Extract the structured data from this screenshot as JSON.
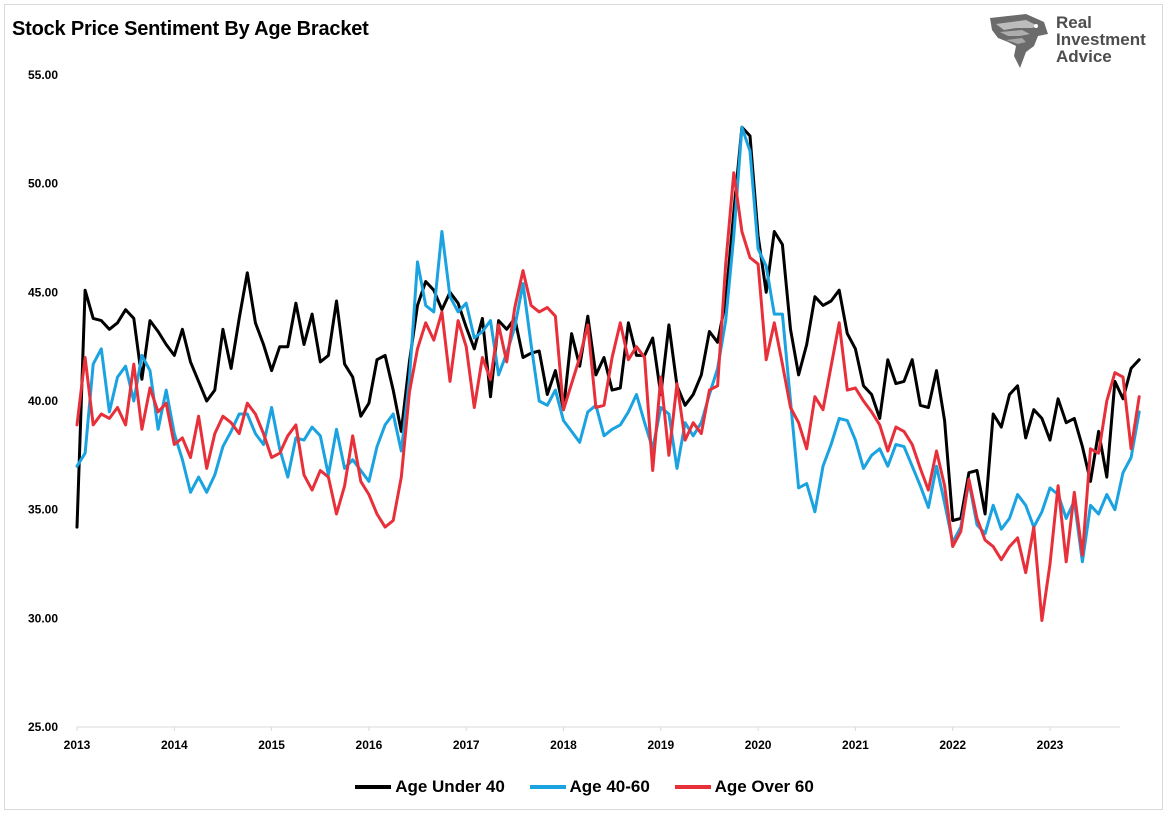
{
  "header": {
    "title": "Stock Price Sentiment By Age Bracket",
    "logo_lines": [
      "Real",
      "Investment",
      "Advice"
    ]
  },
  "colors": {
    "under40": "#000000",
    "age40_60": "#1aa3e0",
    "over60": "#e8303a",
    "axis": "#d9d9d9"
  },
  "chart_data": {
    "type": "line",
    "title": "Stock Price Sentiment By Age Bracket",
    "xlabel": "",
    "ylabel": "",
    "ylim": [
      25,
      55
    ],
    "yticks": [
      "25.00",
      "30.00",
      "35.00",
      "40.00",
      "45.00",
      "50.00",
      "55.00"
    ],
    "xticks": [
      "2013",
      "2014",
      "2015",
      "2016",
      "2017",
      "2018",
      "2019",
      "2020",
      "2021",
      "2022",
      "2023"
    ],
    "x_start": 2013.0,
    "x_step_months": 1,
    "grid": false,
    "legend_position": "bottom",
    "series": [
      {
        "name": "Age Under 40",
        "color": "#000000",
        "values": [
          34.2,
          45.1,
          43.8,
          43.7,
          43.3,
          43.6,
          44.2,
          43.8,
          41.0,
          43.7,
          43.2,
          42.6,
          42.1,
          43.3,
          41.8,
          40.9,
          40.0,
          40.5,
          43.3,
          41.5,
          43.8,
          45.9,
          43.6,
          42.6,
          41.4,
          42.5,
          42.5,
          44.5,
          42.6,
          44.0,
          41.8,
          42.1,
          44.6,
          41.7,
          41.1,
          39.3,
          39.9,
          41.9,
          42.1,
          40.5,
          38.6,
          41.8,
          44.4,
          45.5,
          45.1,
          44.2,
          45.0,
          44.5,
          43.4,
          42.4,
          43.8,
          40.2,
          43.7,
          43.3,
          43.8,
          42.0,
          42.2,
          42.3,
          40.3,
          41.4,
          39.6,
          43.1,
          41.6,
          43.9,
          41.2,
          42.0,
          40.5,
          40.6,
          43.6,
          42.1,
          42.1,
          42.9,
          40.3,
          43.5,
          40.7,
          39.8,
          40.3,
          41.2,
          43.2,
          42.7,
          44.6,
          48.7,
          52.6,
          52.2,
          47.6,
          45.0,
          47.8,
          47.2,
          43.3,
          41.2,
          42.6,
          44.8,
          44.4,
          44.6,
          45.1,
          43.1,
          42.4,
          40.7,
          40.3,
          39.2,
          41.9,
          40.8,
          40.9,
          41.9,
          39.8,
          39.7,
          41.4,
          39.1,
          34.5,
          34.6,
          36.7,
          36.8,
          34.8,
          39.4,
          38.8,
          40.3,
          40.7,
          38.3,
          39.6,
          39.2,
          38.2,
          40.1,
          39.0,
          39.2,
          37.9,
          36.3,
          38.6,
          36.5,
          40.9,
          40.1,
          41.5,
          41.9
        ]
      },
      {
        "name": "Age 40-60",
        "color": "#1aa3e0",
        "values": [
          37.0,
          37.6,
          41.7,
          42.4,
          39.5,
          41.1,
          41.6,
          40.0,
          42.1,
          41.4,
          38.7,
          40.5,
          38.5,
          37.3,
          35.8,
          36.5,
          35.8,
          36.6,
          37.9,
          38.6,
          39.4,
          39.4,
          38.5,
          38.0,
          39.7,
          37.8,
          36.5,
          38.3,
          38.2,
          38.8,
          38.4,
          36.6,
          38.7,
          36.9,
          37.3,
          36.8,
          36.3,
          37.9,
          38.9,
          39.4,
          37.7,
          41.0,
          46.4,
          44.4,
          44.1,
          47.8,
          44.8,
          44.1,
          44.5,
          42.9,
          43.2,
          43.7,
          41.2,
          42.2,
          43.4,
          45.4,
          42.6,
          40.0,
          39.8,
          40.5,
          39.1,
          38.6,
          38.1,
          39.5,
          39.8,
          38.4,
          38.7,
          38.9,
          39.5,
          40.3,
          39.0,
          37.8,
          39.7,
          39.4,
          36.9,
          39.0,
          38.4,
          39.0,
          40.3,
          41.5,
          43.7,
          47.6,
          52.6,
          51.5,
          47.0,
          46.2,
          44.0,
          44.0,
          40.0,
          36.0,
          36.2,
          34.9,
          37.0,
          38.0,
          39.2,
          39.1,
          38.2,
          36.9,
          37.5,
          37.8,
          37.0,
          38.0,
          37.9,
          37.0,
          36.1,
          35.1,
          37.0,
          35.3,
          33.5,
          34.2,
          36.3,
          34.3,
          33.9,
          35.2,
          34.1,
          34.6,
          35.7,
          35.2,
          34.2,
          34.9,
          36.0,
          35.7,
          34.6,
          35.4,
          32.6,
          35.2,
          34.8,
          35.7,
          35.0,
          36.7,
          37.4,
          39.5
        ]
      },
      {
        "name": "Age Over 60",
        "color": "#e8303a",
        "values": [
          38.9,
          42.0,
          38.9,
          39.4,
          39.2,
          39.7,
          38.9,
          41.7,
          38.7,
          40.6,
          39.5,
          39.9,
          38.0,
          38.3,
          37.4,
          39.3,
          36.9,
          38.5,
          39.3,
          39.0,
          38.5,
          39.9,
          39.4,
          38.5,
          37.4,
          37.6,
          38.4,
          38.9,
          36.6,
          35.9,
          36.8,
          36.5,
          34.8,
          36.1,
          38.4,
          36.3,
          35.7,
          34.8,
          34.2,
          34.5,
          36.5,
          40.4,
          42.4,
          43.6,
          42.8,
          44.1,
          40.9,
          43.7,
          42.5,
          39.7,
          42.0,
          41.0,
          43.5,
          41.8,
          44.3,
          46.0,
          44.4,
          44.1,
          44.3,
          43.9,
          39.6,
          40.8,
          42.0,
          43.5,
          39.7,
          39.8,
          42.0,
          43.6,
          41.9,
          42.5,
          42.0,
          36.8,
          41.1,
          37.5,
          40.8,
          38.2,
          39.0,
          38.5,
          40.5,
          40.7,
          46.3,
          50.5,
          47.8,
          46.6,
          46.3,
          41.9,
          43.6,
          41.7,
          39.7,
          39.0,
          37.8,
          40.2,
          39.6,
          41.6,
          43.6,
          40.5,
          40.6,
          40.0,
          39.5,
          38.9,
          37.7,
          38.8,
          38.6,
          38.0,
          36.9,
          35.9,
          37.7,
          36.1,
          33.3,
          34.0,
          36.4,
          34.6,
          33.6,
          33.3,
          32.7,
          33.3,
          33.7,
          32.1,
          34.2,
          29.9,
          32.5,
          36.1,
          32.6,
          35.8,
          32.9,
          37.8,
          37.6,
          40.0,
          41.3,
          41.1,
          37.8,
          40.2
        ]
      }
    ]
  }
}
